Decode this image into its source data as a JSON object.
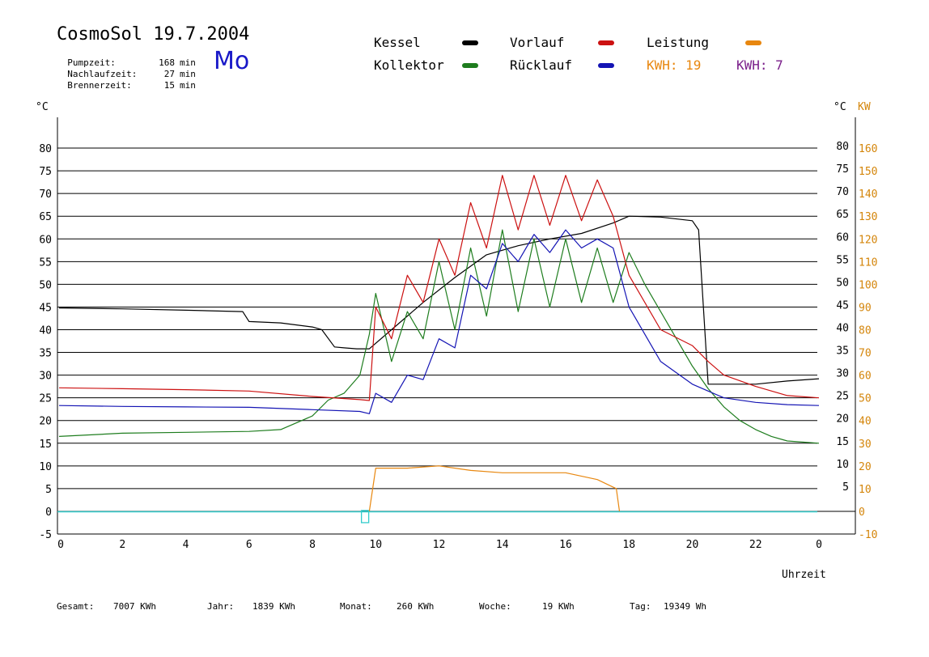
{
  "header": {
    "title": "CosmoSol 19.7.2004",
    "weekday": "Mo",
    "stats": [
      {
        "label": "Pumpzeit:",
        "value": "168",
        "unit": "min"
      },
      {
        "label": "Nachlaufzeit:",
        "value": "27",
        "unit": "min"
      },
      {
        "label": "Brennerzeit:",
        "value": "15",
        "unit": "min"
      }
    ]
  },
  "legend": {
    "kessel": "Kessel",
    "kollektor": "Kollektor",
    "vorlauf": "Vorlauf",
    "ruecklauf": "Rücklauf",
    "leistung": "Leistung",
    "kwh_orange": "KWH: 19",
    "kwh_purple": "KWH: 7"
  },
  "colors": {
    "kessel": "#000000",
    "kollektor": "#1e7d1e",
    "vorlauf": "#cc1111",
    "ruecklauf": "#1414b4",
    "leistung": "#e8870f",
    "kwh_purple": "#7a1f8a",
    "baseline": "#33cccc",
    "kw_axis": "#d4850a"
  },
  "footer": {
    "gesamt_label": "Gesamt:",
    "gesamt_value": "7007 KWh",
    "jahr_label": "Jahr:",
    "jahr_value": "1839 KWh",
    "monat_label": "Monat:",
    "monat_value": "260 KWh",
    "woche_label": "Woche:",
    "woche_value": "19 KWh",
    "tag_label": "Tag:",
    "tag_value": "19349 Wh"
  },
  "chart_data": {
    "type": "line",
    "xlabel": "Uhrzeit",
    "xlim": [
      0,
      24
    ],
    "x_ticks": [
      "0",
      "2",
      "4",
      "6",
      "8",
      "10",
      "12",
      "14",
      "16",
      "18",
      "20",
      "22",
      "0"
    ],
    "ylabel_left": "°C",
    "ylim_left": [
      -5,
      85
    ],
    "y_ticks_left": [
      "-5",
      "0",
      "5",
      "10",
      "15",
      "20",
      "25",
      "30",
      "35",
      "40",
      "45",
      "50",
      "55",
      "60",
      "65",
      "70",
      "75",
      "80"
    ],
    "y_ticks_right_c": [
      "5",
      "10",
      "15",
      "20",
      "25",
      "30",
      "35",
      "40",
      "45",
      "50",
      "55",
      "60",
      "65",
      "70",
      "75",
      "80"
    ],
    "ylabel_right_c": "°C",
    "ylabel_right_kw": "KW",
    "ylim_right": [
      -10,
      170
    ],
    "y_ticks_right_kw": [
      "-10",
      "0",
      "10",
      "20",
      "30",
      "40",
      "50",
      "60",
      "70",
      "80",
      "90",
      "100",
      "110",
      "120",
      "130",
      "140",
      "150",
      "160"
    ],
    "grid": true,
    "series": [
      {
        "name": "Kessel",
        "x": [
          0,
          2,
          4,
          5.8,
          6.0,
          7.0,
          8.0,
          8.3,
          8.7,
          9.0,
          9.4,
          9.8,
          10.5,
          11.5,
          12.5,
          13.5,
          14.5,
          15.5,
          16.5,
          17.5,
          18.0,
          19.0,
          20.0,
          20.2,
          20.5,
          21.0,
          22.0,
          23.0,
          24.0
        ],
        "y": [
          44.8,
          44.6,
          44.3,
          44.0,
          41.8,
          41.5,
          40.6,
          40.0,
          36.2,
          36.0,
          35.8,
          35.8,
          40.0,
          46.0,
          51.5,
          56.5,
          58.5,
          60.0,
          61.2,
          63.5,
          65.0,
          64.8,
          64.0,
          62.0,
          28.0,
          28.0,
          28.0,
          28.7,
          29.2
        ]
      },
      {
        "name": "Kollektor",
        "x": [
          0,
          2,
          4,
          6,
          7,
          8,
          8.5,
          9.0,
          9.5,
          9.8,
          10.0,
          10.5,
          11.0,
          11.5,
          12.0,
          12.5,
          13.0,
          13.5,
          14.0,
          14.5,
          15.0,
          15.5,
          16.0,
          16.5,
          17.0,
          17.5,
          18.0,
          18.5,
          19.0,
          19.5,
          20.0,
          20.5,
          21.0,
          21.5,
          22.0,
          22.5,
          23.0,
          24.0
        ],
        "y": [
          16.5,
          17.2,
          17.4,
          17.6,
          18.0,
          21.0,
          24.5,
          26.0,
          30.0,
          39.0,
          48.0,
          33.0,
          44.0,
          38.0,
          55.0,
          40.0,
          58.0,
          43.0,
          62.0,
          44.0,
          60.0,
          45.0,
          60.0,
          46.0,
          58.0,
          46.0,
          57.0,
          50.0,
          44.0,
          38.0,
          32.0,
          27.0,
          23.0,
          20.0,
          18.0,
          16.5,
          15.5,
          15.0
        ]
      },
      {
        "name": "Vorlauf",
        "x": [
          0,
          2,
          4,
          6,
          8,
          9.5,
          9.8,
          10.0,
          10.5,
          11.0,
          11.5,
          12.0,
          12.5,
          13.0,
          13.5,
          14.0,
          14.5,
          15.0,
          15.5,
          16.0,
          16.5,
          17.0,
          17.5,
          18.0,
          19.0,
          20.0,
          20.5,
          21.0,
          22.0,
          23.0,
          24.0
        ],
        "y": [
          27.2,
          27.0,
          26.8,
          26.5,
          25.3,
          24.6,
          24.4,
          45.0,
          38.0,
          52.0,
          46.0,
          60.0,
          52.0,
          68.0,
          58.0,
          74.0,
          62.0,
          74.0,
          63.0,
          74.0,
          64.0,
          73.0,
          65.0,
          52.0,
          40.0,
          36.5,
          33.0,
          30.0,
          27.5,
          25.5,
          25.0
        ]
      },
      {
        "name": "Rücklauf",
        "x": [
          0,
          2,
          4,
          6,
          8,
          9.5,
          9.8,
          10.0,
          10.5,
          11.0,
          11.5,
          12.0,
          12.5,
          13.0,
          13.5,
          14.0,
          14.5,
          15.0,
          15.5,
          16.0,
          16.5,
          17.0,
          17.5,
          18.0,
          19.0,
          20.0,
          20.5,
          21.0,
          22.0,
          23.0,
          24.0
        ],
        "y": [
          23.3,
          23.1,
          23.0,
          22.9,
          22.4,
          22.0,
          21.5,
          26.0,
          24.0,
          30.0,
          29.0,
          38.0,
          36.0,
          52.0,
          49.0,
          59.0,
          55.0,
          61.0,
          57.0,
          62.0,
          58.0,
          60.0,
          58.0,
          45.0,
          33.0,
          28.0,
          26.5,
          25.0,
          24.0,
          23.5,
          23.3
        ]
      },
      {
        "name": "Leistung",
        "axis": "right_kw",
        "x": [
          9.8,
          10.0,
          11.0,
          12.0,
          13.0,
          14.0,
          15.0,
          16.0,
          17.0,
          17.6,
          17.7
        ],
        "y": [
          0,
          19,
          19,
          20,
          18,
          17,
          17,
          17,
          14,
          10,
          0
        ]
      }
    ]
  }
}
